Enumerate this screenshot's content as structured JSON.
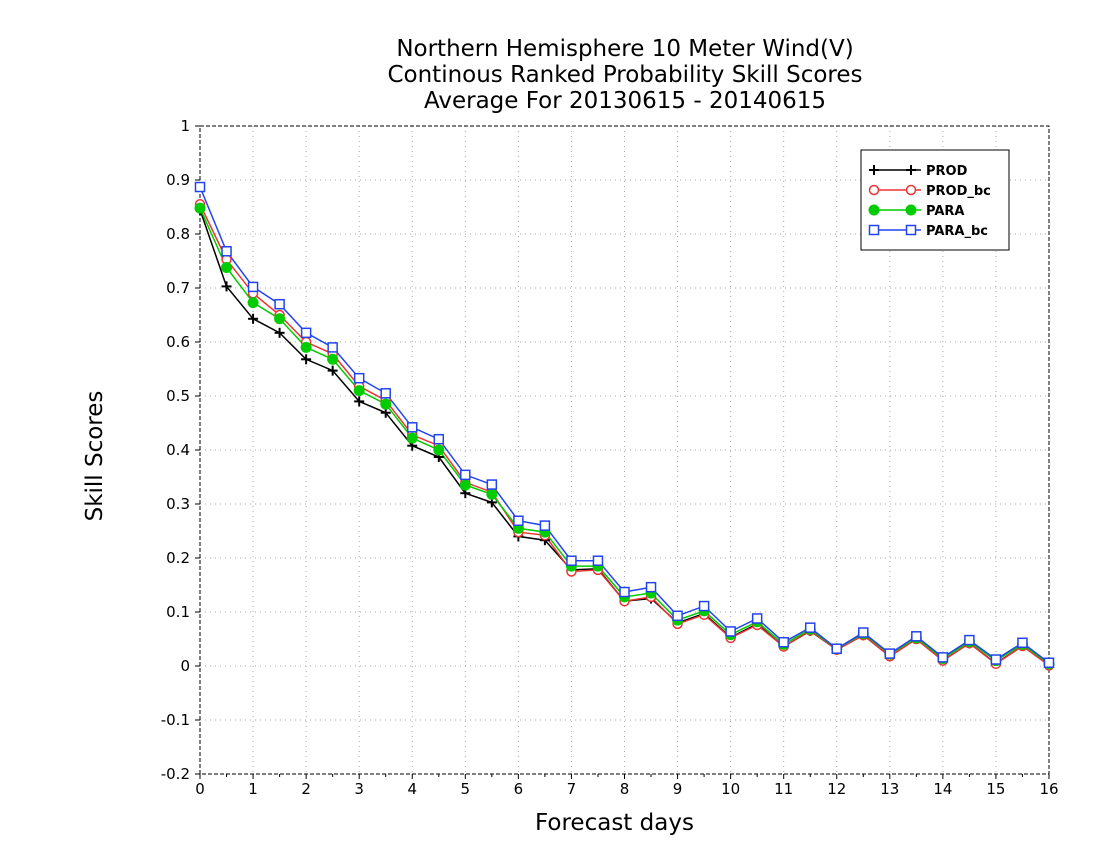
{
  "chart_data": {
    "type": "line",
    "title": [
      "Northern Hemisphere 10 Meter Wind(V)",
      "Continous Ranked Probability Skill Scores",
      "Average For 20130615 - 20140615"
    ],
    "xlabel": "Forecast days",
    "ylabel": "Skill Scores",
    "xlim": [
      0,
      16
    ],
    "ylim": [
      -0.2,
      1
    ],
    "xticks": [
      "0",
      "1",
      "2",
      "3",
      "4",
      "5",
      "6",
      "7",
      "8",
      "9",
      "10",
      "11",
      "12",
      "13",
      "14",
      "15",
      "16"
    ],
    "yticks": [
      "-0.2",
      "-0.1",
      "0",
      "0.1",
      "0.2",
      "0.3",
      "0.4",
      "0.5",
      "0.6",
      "0.7",
      "0.8",
      "0.9",
      "1"
    ],
    "grid": true,
    "legend": "top-right",
    "x": [
      0,
      0.5,
      1,
      1.5,
      2,
      2.5,
      3,
      3.5,
      4,
      4.5,
      5,
      5.5,
      6,
      6.5,
      7,
      7.5,
      8,
      8.5,
      9,
      9.5,
      10,
      10.5,
      11,
      11.5,
      12,
      12.5,
      13,
      13.5,
      14,
      14.5,
      15,
      15.5,
      16
    ],
    "series": [
      {
        "name": "PROD",
        "color": "#000000",
        "marker": "plus",
        "values": [
          0.845,
          0.703,
          0.643,
          0.617,
          0.568,
          0.547,
          0.49,
          0.469,
          0.408,
          0.387,
          0.32,
          0.303,
          0.24,
          0.233,
          0.178,
          0.18,
          0.12,
          0.125,
          0.08,
          0.097,
          0.053,
          0.078,
          0.036,
          0.065,
          0.03,
          0.057,
          0.018,
          0.05,
          0.01,
          0.042,
          0.005,
          0.037,
          0.002
        ]
      },
      {
        "name": "PROD_bc",
        "color": "#ee3333",
        "marker": "open-circle",
        "values": [
          0.855,
          0.753,
          0.69,
          0.65,
          0.6,
          0.578,
          0.518,
          0.492,
          0.428,
          0.408,
          0.34,
          0.322,
          0.248,
          0.242,
          0.175,
          0.178,
          0.12,
          0.128,
          0.078,
          0.095,
          0.052,
          0.076,
          0.036,
          0.066,
          0.03,
          0.057,
          0.018,
          0.05,
          0.01,
          0.042,
          0.004,
          0.037,
          0.001
        ]
      },
      {
        "name": "PARA",
        "color": "#00cc00",
        "marker": "filled-circle",
        "values": [
          0.848,
          0.738,
          0.673,
          0.643,
          0.59,
          0.568,
          0.51,
          0.485,
          0.422,
          0.4,
          0.335,
          0.318,
          0.255,
          0.248,
          0.185,
          0.185,
          0.128,
          0.135,
          0.085,
          0.102,
          0.058,
          0.082,
          0.04,
          0.068,
          0.032,
          0.06,
          0.022,
          0.052,
          0.014,
          0.045,
          0.01,
          0.04,
          0.004
        ]
      },
      {
        "name": "PARA_bc",
        "color": "#2244ee",
        "marker": "open-square",
        "values": [
          0.887,
          0.768,
          0.702,
          0.67,
          0.617,
          0.59,
          0.533,
          0.505,
          0.442,
          0.42,
          0.354,
          0.336,
          0.269,
          0.26,
          0.195,
          0.195,
          0.137,
          0.146,
          0.093,
          0.111,
          0.064,
          0.088,
          0.044,
          0.071,
          0.032,
          0.062,
          0.023,
          0.055,
          0.016,
          0.048,
          0.012,
          0.043,
          0.006
        ]
      }
    ]
  }
}
